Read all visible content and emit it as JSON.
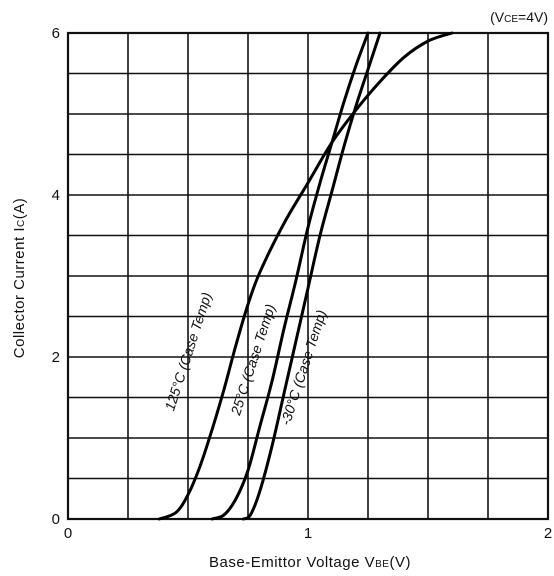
{
  "chart_data": {
    "type": "line",
    "condition": "(V",
    "condition_sub": "CE",
    "condition_rest": "=4V)",
    "xlabel": "Base-Emittor Voltage V",
    "xlabel_sub": "BE",
    "xlabel_rest": "(V)",
    "ylabel": "Collector Current I",
    "ylabel_sub": "C",
    "ylabel_rest": "(A)",
    "xlim": [
      0,
      2
    ],
    "ylim": [
      0,
      6
    ],
    "x_ticks": [
      {
        "value": 0,
        "label": "0"
      },
      {
        "value": 1,
        "label": "1"
      },
      {
        "value": 2,
        "label": "2"
      }
    ],
    "y_ticks": [
      {
        "value": 0,
        "label": "0"
      },
      {
        "value": 2,
        "label": "2"
      },
      {
        "value": 4,
        "label": "4"
      },
      {
        "value": 6,
        "label": "6"
      }
    ],
    "grid": true,
    "grid_x_step": 0.25,
    "grid_y_step": 0.5,
    "series": [
      {
        "name": "125°C (Case Temp)",
        "x": [
          0.38,
          0.45,
          0.5,
          0.55,
          0.6,
          0.65,
          0.7,
          0.75,
          0.8,
          0.9,
          1.0,
          1.1,
          1.2,
          1.3,
          1.4,
          1.5,
          1.6
        ],
        "y": [
          0,
          0.08,
          0.3,
          0.65,
          1.1,
          1.6,
          2.15,
          2.65,
          3.05,
          3.65,
          4.15,
          4.65,
          5.05,
          5.4,
          5.7,
          5.9,
          6.0
        ]
      },
      {
        "name": "25°C (Case Temp)",
        "x": [
          0.6,
          0.65,
          0.7,
          0.75,
          0.8,
          0.85,
          0.9,
          0.95,
          1.0,
          1.05,
          1.1,
          1.15,
          1.2,
          1.25
        ],
        "y": [
          0,
          0.05,
          0.25,
          0.6,
          1.15,
          1.7,
          2.35,
          2.95,
          3.6,
          4.15,
          4.65,
          5.15,
          5.6,
          6.0
        ]
      },
      {
        "name": "-30°C (Case Temp)",
        "x": [
          0.73,
          0.76,
          0.8,
          0.85,
          0.9,
          0.95,
          1.0,
          1.05,
          1.1,
          1.15,
          1.2,
          1.25,
          1.3
        ],
        "y": [
          0,
          0.05,
          0.35,
          0.9,
          1.55,
          2.2,
          2.85,
          3.5,
          4.05,
          4.6,
          5.1,
          5.55,
          6.0
        ]
      }
    ],
    "curve_labels": [
      {
        "series": 0,
        "text": "125°C (Case Temp)",
        "x": 0.52,
        "y": 2.05,
        "angle": -72
      },
      {
        "series": 1,
        "text": "25°C (Case Temp)",
        "x": 0.79,
        "y": 1.95,
        "angle": -72
      },
      {
        "series": 2,
        "text": "-30°C (Case Temp)",
        "x": 1.0,
        "y": 1.85,
        "angle": -72
      }
    ]
  }
}
